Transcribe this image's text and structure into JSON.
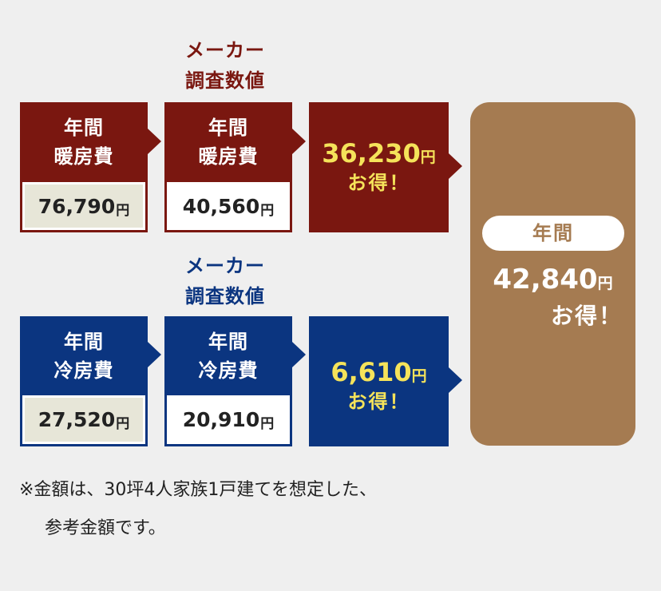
{
  "heating": {
    "maker_heading_line1": "メーカー",
    "maker_heading_line2": "調査数値",
    "left": {
      "line1": "年間",
      "line2": "暖房費",
      "value": "76,790",
      "unit": "円"
    },
    "mid": {
      "line1": "年間",
      "line2": "暖房費",
      "value": "40,560",
      "unit": "円"
    },
    "saving": {
      "value": "36,230",
      "unit": "円",
      "label": "お得！"
    }
  },
  "cooling": {
    "maker_heading_line1": "メーカー",
    "maker_heading_line2": "調査数値",
    "left": {
      "line1": "年間",
      "line2": "冷房費",
      "value": "27,520",
      "unit": "円"
    },
    "mid": {
      "line1": "年間",
      "line2": "冷房費",
      "value": "20,910",
      "unit": "円"
    },
    "saving": {
      "value": "6,610",
      "unit": "円",
      "label": "お得！"
    }
  },
  "total": {
    "pill": "年間",
    "value": "42,840",
    "unit": "円",
    "label": "お得！"
  },
  "note": {
    "line1": "※金額は、30坪4人家族1戸建てを想定した、",
    "line2": "参考金額です。"
  },
  "colors": {
    "heating": "#7a1710",
    "cooling": "#0b3580",
    "total": "#a57b51",
    "highlight": "#f5e35a",
    "value_bg_left": "#e7e6d8",
    "value_bg_mid": "#ffffff"
  }
}
